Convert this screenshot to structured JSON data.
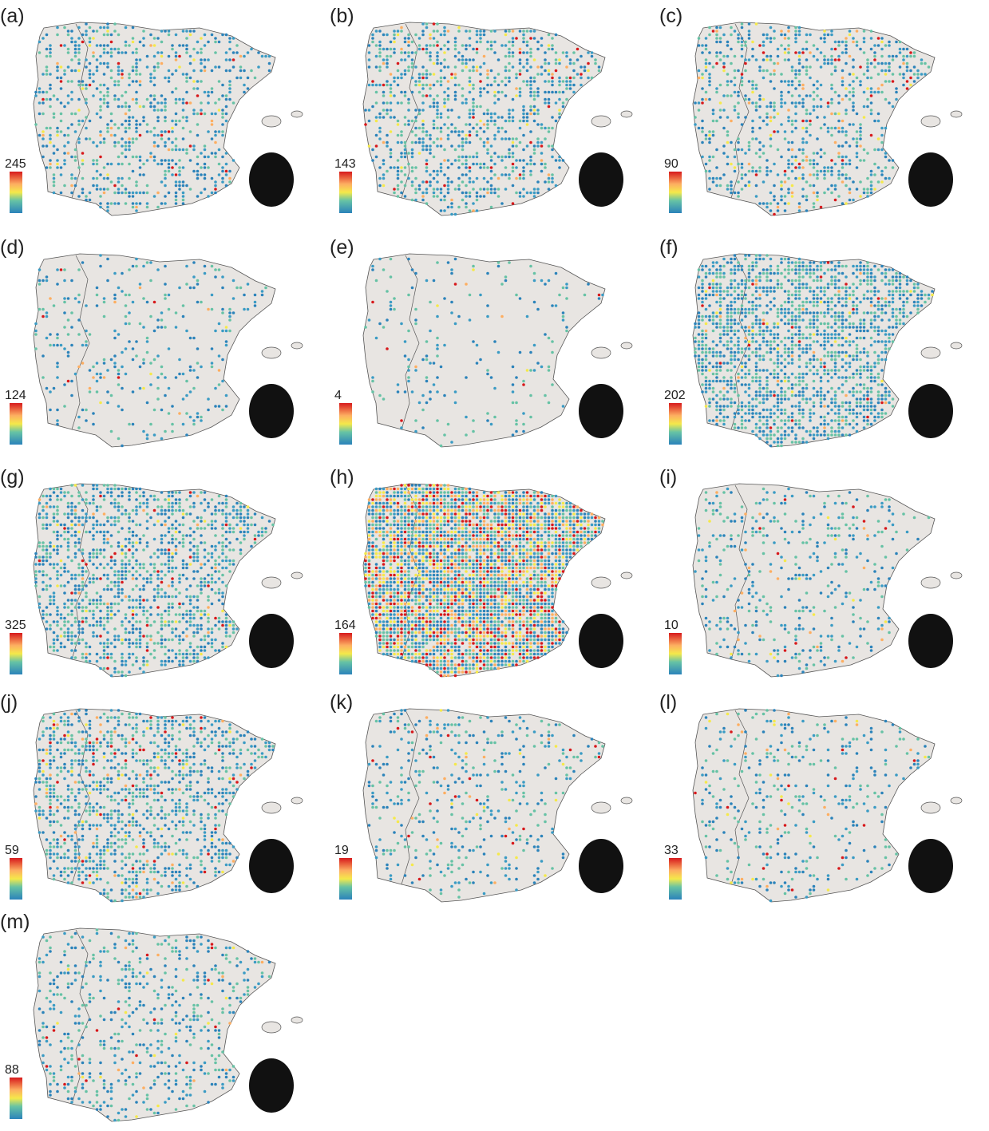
{
  "panels": [
    {
      "label": "(a)",
      "max": "245"
    },
    {
      "label": "(b)",
      "max": "143"
    },
    {
      "label": "(c)",
      "max": "90"
    },
    {
      "label": "(d)",
      "max": "124"
    },
    {
      "label": "(e)",
      "max": "4"
    },
    {
      "label": "(f)",
      "max": "202"
    },
    {
      "label": "(g)",
      "max": "325"
    },
    {
      "label": "(h)",
      "max": "164"
    },
    {
      "label": "(i)",
      "max": "10"
    },
    {
      "label": "(j)",
      "max": "59"
    },
    {
      "label": "(k)",
      "max": "19"
    },
    {
      "label": "(l)",
      "max": "33"
    },
    {
      "label": "(m)",
      "max": "88"
    }
  ]
}
